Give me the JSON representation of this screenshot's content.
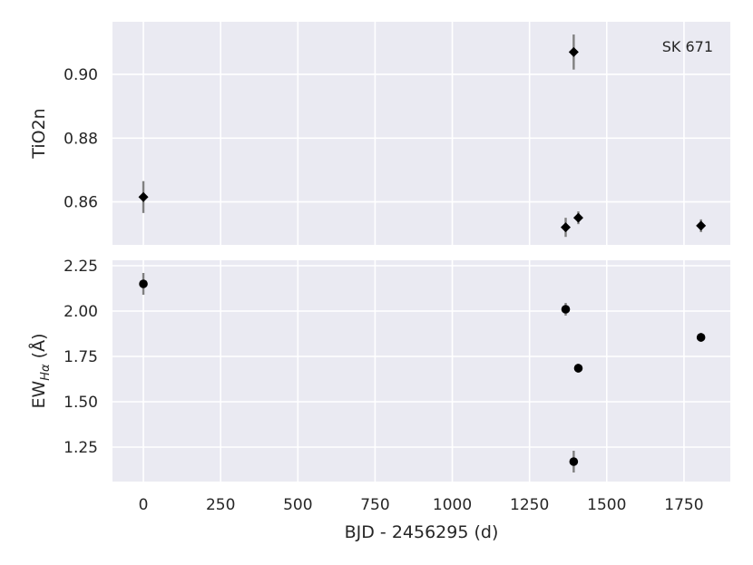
{
  "chart_data": [
    {
      "type": "scatter",
      "ylabel": "TiO2n",
      "annotation": "SK 671",
      "marker": "diamond",
      "xlim": [
        -100,
        1900
      ],
      "ylim": [
        0.8465,
        0.9165
      ],
      "x_ticks": [
        0,
        250,
        500,
        750,
        1000,
        1250,
        1500,
        1750
      ],
      "y_ticks": [
        0.86,
        0.88,
        0.9
      ],
      "y_tick_labels": [
        "0.86",
        "0.88",
        "0.90"
      ],
      "grid": true,
      "points": [
        {
          "x": 0,
          "y": 0.8615,
          "err": 0.005
        },
        {
          "x": 1367,
          "y": 0.852,
          "err": 0.003
        },
        {
          "x": 1393,
          "y": 0.907,
          "err": 0.0055
        },
        {
          "x": 1408,
          "y": 0.855,
          "err": 0.002
        },
        {
          "x": 1805,
          "y": 0.8525,
          "err": 0.002
        }
      ]
    },
    {
      "type": "scatter",
      "ylabel_main": "EW",
      "ylabel_sub": "Hα",
      "ylabel_unit": " (Å)",
      "marker": "circle",
      "xlabel": "BJD - 2456295 (d)",
      "xlim": [
        -100,
        1900
      ],
      "ylim": [
        1.06,
        2.28
      ],
      "x_ticks": [
        0,
        250,
        500,
        750,
        1000,
        1250,
        1500,
        1750
      ],
      "x_tick_labels": [
        "0",
        "250",
        "500",
        "750",
        "1000",
        "1250",
        "1500",
        "1750"
      ],
      "y_ticks": [
        1.25,
        1.5,
        1.75,
        2.0,
        2.25
      ],
      "y_tick_labels": [
        "1.25",
        "1.50",
        "1.75",
        "2.00",
        "2.25"
      ],
      "grid": true,
      "points": [
        {
          "x": 0,
          "y": 2.15,
          "err": 0.06
        },
        {
          "x": 1367,
          "y": 2.01,
          "err": 0.035
        },
        {
          "x": 1393,
          "y": 1.17,
          "err": 0.06
        },
        {
          "x": 1408,
          "y": 1.685,
          "err": 0.025
        },
        {
          "x": 1805,
          "y": 1.855,
          "err": 0.025
        }
      ]
    }
  ]
}
